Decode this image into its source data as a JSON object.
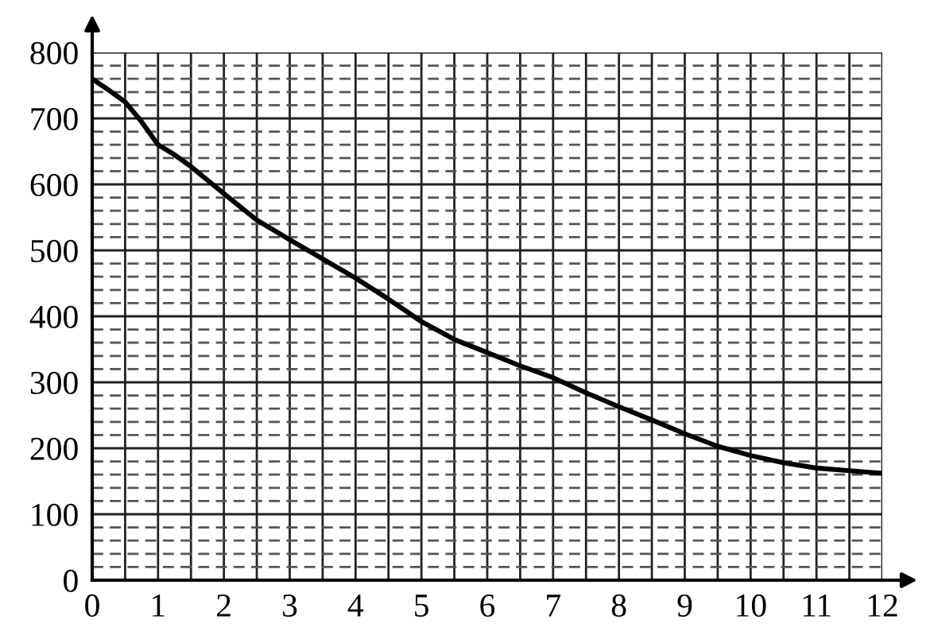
{
  "chart_data": {
    "type": "line",
    "x": [
      0,
      0.25,
      0.5,
      0.75,
      1,
      1.25,
      1.5,
      2,
      2.5,
      3,
      4,
      4.5,
      5,
      5.5,
      6,
      6.5,
      7,
      7.5,
      8,
      8.5,
      9,
      9.5,
      10,
      10.5,
      11,
      11.5,
      12
    ],
    "series": [
      {
        "color": "#000000",
        "values": [
          760,
          743,
          725,
          695,
          660,
          645,
          627,
          586,
          546,
          516,
          458,
          426,
          392,
          365,
          345,
          325,
          307,
          284,
          263,
          243,
          222,
          203,
          189,
          178,
          170,
          166,
          162
        ]
      }
    ],
    "xlim": [
      0,
      12
    ],
    "ylim": [
      0,
      800
    ],
    "xticks": [
      0,
      1,
      2,
      3,
      4,
      5,
      6,
      7,
      8,
      9,
      10,
      11,
      12
    ],
    "yticks": [
      0,
      100,
      200,
      300,
      400,
      500,
      600,
      700,
      800
    ],
    "grid": true,
    "legend": false,
    "marker": "none",
    "line_style": "solid"
  }
}
